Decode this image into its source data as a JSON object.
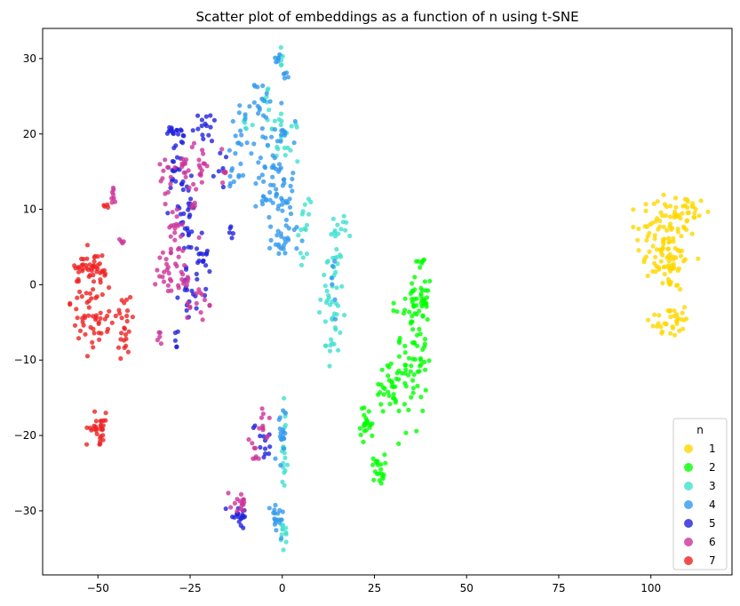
{
  "chart_data": {
    "type": "scatter",
    "title": "Scatter plot of embeddings as a function of n using t-SNE",
    "xlabel": "",
    "ylabel": "",
    "xlim": [
      -65,
      122
    ],
    "ylim": [
      -38.5,
      34
    ],
    "x_ticks": [
      -50,
      -25,
      0,
      25,
      50,
      75,
      100
    ],
    "y_ticks": [
      -30,
      -20,
      -10,
      0,
      10,
      20,
      30
    ],
    "grid": false,
    "legend": {
      "title": "n",
      "placement": "lower-right"
    },
    "series": [
      {
        "name": "1",
        "color": "#FFD700",
        "clusters": [
          {
            "cx": 104,
            "cy": 6,
            "sx": 4,
            "sy": 3.5,
            "n": 110
          },
          {
            "cx": 110,
            "cy": 9.5,
            "sx": 2.5,
            "sy": 1.2,
            "n": 20
          },
          {
            "cx": 106,
            "cy": 2,
            "sx": 2.5,
            "sy": 1.5,
            "n": 16
          },
          {
            "cx": 104,
            "cy": -5,
            "sx": 2.2,
            "sy": 1.1,
            "n": 22
          },
          {
            "cx": 108.5,
            "cy": -4.5,
            "sx": 1.3,
            "sy": 1.0,
            "n": 12
          }
        ]
      },
      {
        "name": "2",
        "color": "#00FF00",
        "clusters": [
          {
            "cx": 35,
            "cy": -9,
            "sx": 2.2,
            "sy": 5.5,
            "n": 80
          },
          {
            "cx": 38,
            "cy": -2,
            "sx": 1.3,
            "sy": 2.5,
            "n": 30
          },
          {
            "cx": 29,
            "cy": -13.5,
            "sx": 2.2,
            "sy": 1.5,
            "n": 30
          },
          {
            "cx": 23,
            "cy": -18.5,
            "sx": 0.9,
            "sy": 1.2,
            "n": 22
          },
          {
            "cx": 26,
            "cy": -24.5,
            "sx": 0.9,
            "sy": 1.0,
            "n": 20
          },
          {
            "cx": 38,
            "cy": 3,
            "sx": 0.4,
            "sy": 0.4,
            "n": 4
          }
        ]
      },
      {
        "name": "3",
        "color": "#40E0D0",
        "clusters": [
          {
            "cx": 13.5,
            "cy": -1,
            "sx": 1.8,
            "sy": 3.5,
            "n": 40
          },
          {
            "cx": 15,
            "cy": 7.5,
            "sx": 1.5,
            "sy": 0.9,
            "n": 12
          },
          {
            "cx": 13.5,
            "cy": -7.5,
            "sx": 0.8,
            "sy": 1.5,
            "n": 10
          },
          {
            "cx": 6,
            "cy": 7,
            "sx": 0.8,
            "sy": 2.0,
            "n": 15
          },
          {
            "cx": 0.5,
            "cy": 19.5,
            "sx": 2.0,
            "sy": 1.5,
            "n": 24
          },
          {
            "cx": 0,
            "cy": 30,
            "sx": 0.5,
            "sy": 0.8,
            "n": 6
          },
          {
            "cx": 0.5,
            "cy": -23,
            "sx": 0.5,
            "sy": 4.0,
            "n": 18
          },
          {
            "cx": 0.5,
            "cy": -33,
            "sx": 0.6,
            "sy": 1.3,
            "n": 12
          },
          {
            "cx": -10,
            "cy": 21,
            "sx": 1.0,
            "sy": 1.0,
            "n": 6
          },
          {
            "cx": -4,
            "cy": 24.5,
            "sx": 0.9,
            "sy": 1.2,
            "n": 8
          }
        ]
      },
      {
        "name": "4",
        "color": "#3399EE",
        "clusters": [
          {
            "cx": -2,
            "cy": 17,
            "sx": 2.5,
            "sy": 3.5,
            "n": 50
          },
          {
            "cx": -1.5,
            "cy": 11,
            "sx": 2.5,
            "sy": 2.0,
            "n": 30
          },
          {
            "cx": 1,
            "cy": 6,
            "sx": 2.0,
            "sy": 1.2,
            "n": 22
          },
          {
            "cx": -11,
            "cy": 20,
            "sx": 1.5,
            "sy": 2.5,
            "n": 20
          },
          {
            "cx": -14,
            "cy": 14.5,
            "sx": 1.0,
            "sy": 1.0,
            "n": 8
          },
          {
            "cx": -5.5,
            "cy": 24.5,
            "sx": 1.0,
            "sy": 1.2,
            "n": 12
          },
          {
            "cx": -1,
            "cy": 30,
            "sx": 0.5,
            "sy": 0.5,
            "n": 6
          },
          {
            "cx": 0.5,
            "cy": 27.5,
            "sx": 0.5,
            "sy": 0.4,
            "n": 5
          },
          {
            "cx": -0.5,
            "cy": -21,
            "sx": 0.7,
            "sy": 2.5,
            "n": 18
          },
          {
            "cx": -1.5,
            "cy": -31,
            "sx": 0.9,
            "sy": 1.2,
            "n": 18
          },
          {
            "cx": 14,
            "cy": 0,
            "sx": 0.8,
            "sy": 3,
            "n": 6
          }
        ]
      },
      {
        "name": "5",
        "color": "#2222DD",
        "clusters": [
          {
            "cx": -26,
            "cy": 9,
            "sx": 1.8,
            "sy": 2.5,
            "n": 30
          },
          {
            "cx": -22,
            "cy": 4,
            "sx": 1.2,
            "sy": 2.5,
            "n": 18
          },
          {
            "cx": -24,
            "cy": -1,
            "sx": 2.0,
            "sy": 1.5,
            "n": 16
          },
          {
            "cx": -29.5,
            "cy": 15,
            "sx": 1.0,
            "sy": 2.5,
            "n": 20
          },
          {
            "cx": -30,
            "cy": 20,
            "sx": 0.8,
            "sy": 0.6,
            "n": 10
          },
          {
            "cx": -21,
            "cy": 21,
            "sx": 1.5,
            "sy": 1.2,
            "n": 15
          },
          {
            "cx": -27,
            "cy": 19.5,
            "sx": 0.5,
            "sy": 0.6,
            "n": 6
          },
          {
            "cx": -12,
            "cy": -30.5,
            "sx": 1.5,
            "sy": 0.8,
            "n": 20
          },
          {
            "cx": -5,
            "cy": -20.5,
            "sx": 1.5,
            "sy": 1.5,
            "n": 12
          },
          {
            "cx": -14,
            "cy": 7,
            "sx": 0.4,
            "sy": 1.5,
            "n": 5
          },
          {
            "cx": -29,
            "cy": -7.5,
            "sx": 0.8,
            "sy": 0.7,
            "n": 5
          },
          {
            "cx": -17,
            "cy": 16,
            "sx": 0.8,
            "sy": 1.5,
            "n": 6
          }
        ]
      },
      {
        "name": "6",
        "color": "#CC3399",
        "clusters": [
          {
            "cx": -30.5,
            "cy": 2,
            "sx": 1.8,
            "sy": 2.0,
            "n": 25
          },
          {
            "cx": -29,
            "cy": 8,
            "sx": 1.0,
            "sy": 1.5,
            "n": 12
          },
          {
            "cx": -31,
            "cy": 14,
            "sx": 1.0,
            "sy": 1.5,
            "n": 12
          },
          {
            "cx": -27,
            "cy": 15.5,
            "sx": 1.2,
            "sy": 0.8,
            "n": 12
          },
          {
            "cx": -22,
            "cy": 17,
            "sx": 1.5,
            "sy": 2.0,
            "n": 15
          },
          {
            "cx": -23,
            "cy": -2.5,
            "sx": 1.5,
            "sy": 1.2,
            "n": 14
          },
          {
            "cx": -26.5,
            "cy": 0.5,
            "sx": 1.0,
            "sy": 0.5,
            "n": 8
          },
          {
            "cx": -28,
            "cy": 4.5,
            "sx": 1.0,
            "sy": 1.0,
            "n": 8
          },
          {
            "cx": -24,
            "cy": 10,
            "sx": 1.0,
            "sy": 2.0,
            "n": 8
          },
          {
            "cx": -12,
            "cy": -29,
            "sx": 1.2,
            "sy": 1.2,
            "n": 15
          },
          {
            "cx": -4.5,
            "cy": -18.5,
            "sx": 0.8,
            "sy": 1.0,
            "n": 10
          },
          {
            "cx": -7.5,
            "cy": -22,
            "sx": 0.8,
            "sy": 1.3,
            "n": 8
          },
          {
            "cx": -46,
            "cy": 11.5,
            "sx": 0.5,
            "sy": 1.0,
            "n": 8
          },
          {
            "cx": -43.5,
            "cy": 5.8,
            "sx": 0.5,
            "sy": 0.5,
            "n": 4
          },
          {
            "cx": -33.5,
            "cy": -7,
            "sx": 0.6,
            "sy": 0.5,
            "n": 5
          },
          {
            "cx": -16,
            "cy": 15,
            "sx": 0.8,
            "sy": 1.5,
            "n": 6
          }
        ]
      },
      {
        "name": "7",
        "color": "#EE2222",
        "clusters": [
          {
            "cx": -51,
            "cy": -2,
            "sx": 3.0,
            "sy": 3.5,
            "n": 80
          },
          {
            "cx": -43,
            "cy": -5,
            "sx": 1.5,
            "sy": 2.5,
            "n": 25
          },
          {
            "cx": -52,
            "cy": 2.5,
            "sx": 2.0,
            "sy": 0.6,
            "n": 18
          },
          {
            "cx": -50,
            "cy": -19,
            "sx": 1.5,
            "sy": 1.0,
            "n": 30
          },
          {
            "cx": -47.5,
            "cy": 10.3,
            "sx": 0.5,
            "sy": 0.3,
            "n": 4
          }
        ]
      }
    ]
  }
}
